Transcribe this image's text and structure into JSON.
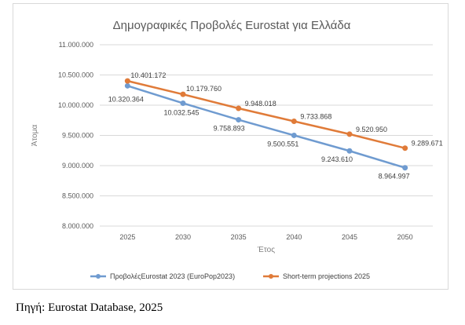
{
  "chart_data": {
    "type": "line",
    "title": "Δημογραφικές Προβολές Eurostat για Ελλάδα",
    "xlabel": "Έτος",
    "ylabel": "Άτομα",
    "x": [
      "2025",
      "2030",
      "2035",
      "2040",
      "2045",
      "2050"
    ],
    "ylim": [
      8000000,
      11000000
    ],
    "yticks": [
      8000000,
      8500000,
      9000000,
      9500000,
      10000000,
      10500000,
      11000000
    ],
    "ytick_labels": [
      "8.000.000",
      "8.500.000",
      "9.000.000",
      "9.500.000",
      "10.000.000",
      "10.500.000",
      "11.000.000"
    ],
    "grid": "horizontal",
    "legend_position": "bottom",
    "series": [
      {
        "name": "ΠροβολέςEurostat 2023 (EuroPop2023)",
        "color": "#6f9bd0",
        "values": [
          10320364,
          10032545,
          9758893,
          9500551,
          9243610,
          8964997
        ],
        "labels": [
          "10.320.364",
          "10.032.545",
          "9.758.893",
          "9.500.551",
          "9.243.610",
          "8.964.997"
        ]
      },
      {
        "name": "Short-term projections 2025",
        "color": "#e07b39",
        "values": [
          10401172,
          10179760,
          9948018,
          9733868,
          9520950,
          9289671
        ],
        "labels": [
          "10.401.172",
          "10.179.760",
          "9.948.018",
          "9.733.868",
          "9.520.950",
          "9.289.671"
        ]
      }
    ]
  },
  "source": "Πηγή: Eurostat Database, 2025"
}
